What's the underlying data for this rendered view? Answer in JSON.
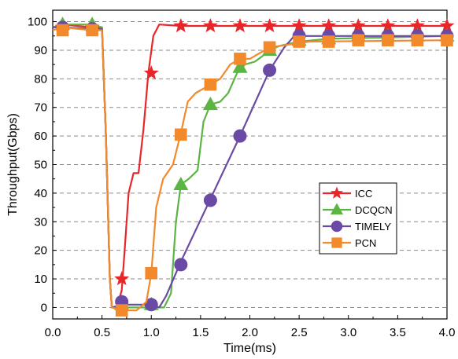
{
  "chart_data": {
    "type": "line",
    "xlabel": "Time(ms)",
    "ylabel": "Throughput(Gbps)",
    "xlim": [
      0.0,
      4.0
    ],
    "ylim": [
      -4,
      104
    ],
    "xticks": [
      0.0,
      0.5,
      1.0,
      1.5,
      2.0,
      2.5,
      3.0,
      3.5,
      4.0
    ],
    "xtick_labels": [
      "0.0",
      "0.5",
      "1.0",
      "1.5",
      "2.0",
      "2.5",
      "3.0",
      "3.5",
      "4.0"
    ],
    "yticks": [
      0,
      10,
      20,
      30,
      40,
      50,
      60,
      70,
      80,
      90,
      100
    ],
    "ytick_labels": [
      "0",
      "10",
      "20",
      "30",
      "40",
      "50",
      "60",
      "70",
      "80",
      "90",
      "100"
    ],
    "grid": "horizontal dashed",
    "legend_position": "right-middle",
    "series": [
      {
        "name": "ICC",
        "color": "#e8262a",
        "marker": "star",
        "line": [
          [
            0,
            98
          ],
          [
            0.1,
            99
          ],
          [
            0.4,
            98
          ],
          [
            0.5,
            98
          ],
          [
            0.54,
            60
          ],
          [
            0.58,
            10
          ],
          [
            0.6,
            0
          ],
          [
            0.65,
            0
          ],
          [
            0.7,
            6
          ],
          [
            0.73,
            20
          ],
          [
            0.77,
            40
          ],
          [
            0.82,
            47
          ],
          [
            0.87,
            47
          ],
          [
            0.92,
            62
          ],
          [
            0.97,
            82
          ],
          [
            1.02,
            95
          ],
          [
            1.08,
            99
          ],
          [
            1.3,
            98.5
          ],
          [
            4.0,
            98.5
          ]
        ],
        "markers": [
          [
            0.1,
            98
          ],
          [
            0.4,
            98
          ],
          [
            0.7,
            10
          ],
          [
            1.0,
            82
          ],
          [
            1.3,
            98.5
          ],
          [
            1.6,
            98.5
          ],
          [
            1.9,
            98.5
          ],
          [
            2.2,
            98.5
          ],
          [
            2.5,
            98.5
          ],
          [
            2.8,
            98.5
          ],
          [
            3.1,
            98.5
          ],
          [
            3.4,
            98.5
          ],
          [
            3.7,
            98.5
          ],
          [
            4.0,
            98.5
          ]
        ]
      },
      {
        "name": "DCQCN",
        "color": "#5ab542",
        "marker": "triangle",
        "line": [
          [
            0,
            98
          ],
          [
            0.1,
            99
          ],
          [
            0.4,
            99
          ],
          [
            0.5,
            98
          ],
          [
            0.54,
            60
          ],
          [
            0.58,
            10
          ],
          [
            0.6,
            0
          ],
          [
            1.0,
            0
          ],
          [
            1.13,
            0
          ],
          [
            1.2,
            5
          ],
          [
            1.25,
            30
          ],
          [
            1.3,
            43
          ],
          [
            1.38,
            45
          ],
          [
            1.47,
            48
          ],
          [
            1.53,
            65
          ],
          [
            1.6,
            71
          ],
          [
            1.7,
            72
          ],
          [
            1.78,
            75
          ],
          [
            1.87,
            82
          ],
          [
            1.95,
            85
          ],
          [
            2.05,
            86
          ],
          [
            2.13,
            88
          ],
          [
            2.2,
            90
          ],
          [
            2.3,
            91.5
          ],
          [
            2.5,
            93
          ],
          [
            2.8,
            94
          ],
          [
            4.0,
            95
          ]
        ],
        "markers": [
          [
            0.1,
            99
          ],
          [
            0.4,
            99
          ],
          [
            0.7,
            1
          ],
          [
            1.0,
            1
          ],
          [
            1.3,
            43
          ],
          [
            1.6,
            71
          ],
          [
            1.9,
            84
          ],
          [
            2.2,
            90
          ],
          [
            2.5,
            93.5
          ],
          [
            2.8,
            94
          ],
          [
            3.1,
            95
          ],
          [
            3.4,
            95
          ],
          [
            3.7,
            95
          ],
          [
            4.0,
            95
          ]
        ]
      },
      {
        "name": "TIMELY",
        "color": "#6a4aa5",
        "marker": "circle",
        "line": [
          [
            0,
            98
          ],
          [
            0.1,
            98
          ],
          [
            0.4,
            97.5
          ],
          [
            0.5,
            97.5
          ],
          [
            0.54,
            60
          ],
          [
            0.58,
            10
          ],
          [
            0.6,
            0
          ],
          [
            0.7,
            1
          ],
          [
            1.0,
            1
          ],
          [
            1.08,
            0
          ],
          [
            1.15,
            4
          ],
          [
            1.3,
            16
          ],
          [
            1.6,
            38
          ],
          [
            1.9,
            60
          ],
          [
            2.2,
            83
          ],
          [
            2.35,
            91
          ],
          [
            2.45,
            95
          ],
          [
            2.6,
            95
          ],
          [
            4.0,
            95
          ]
        ],
        "markers": [
          [
            0.1,
            98
          ],
          [
            0.4,
            97.5
          ],
          [
            0.7,
            2
          ],
          [
            1.0,
            1
          ],
          [
            1.3,
            15
          ],
          [
            1.6,
            37.5
          ],
          [
            1.9,
            60
          ],
          [
            2.2,
            83
          ],
          [
            2.5,
            95
          ],
          [
            2.8,
            95
          ],
          [
            3.1,
            95
          ],
          [
            3.4,
            95
          ],
          [
            3.7,
            95
          ],
          [
            4.0,
            95
          ]
        ]
      },
      {
        "name": "PCN",
        "color": "#f28a2b",
        "marker": "square",
        "line": [
          [
            0,
            97
          ],
          [
            0.1,
            98
          ],
          [
            0.4,
            97
          ],
          [
            0.5,
            97
          ],
          [
            0.54,
            60
          ],
          [
            0.58,
            10
          ],
          [
            0.6,
            0
          ],
          [
            0.7,
            -1
          ],
          [
            0.85,
            -1
          ],
          [
            0.95,
            2
          ],
          [
            1.0,
            12
          ],
          [
            1.05,
            35
          ],
          [
            1.12,
            45
          ],
          [
            1.22,
            50
          ],
          [
            1.3,
            61
          ],
          [
            1.37,
            72
          ],
          [
            1.45,
            75
          ],
          [
            1.55,
            77
          ],
          [
            1.6,
            78
          ],
          [
            1.7,
            80
          ],
          [
            1.8,
            85
          ],
          [
            1.9,
            87
          ],
          [
            2.0,
            87
          ],
          [
            2.1,
            89
          ],
          [
            2.2,
            91
          ],
          [
            2.4,
            92
          ],
          [
            2.6,
            93
          ],
          [
            4.0,
            93.5
          ]
        ],
        "markers": [
          [
            0.1,
            97
          ],
          [
            0.4,
            97
          ],
          [
            0.7,
            -1
          ],
          [
            1.0,
            12
          ],
          [
            1.3,
            60.5
          ],
          [
            1.6,
            78
          ],
          [
            1.9,
            87
          ],
          [
            2.2,
            91
          ],
          [
            2.5,
            93
          ],
          [
            2.8,
            93
          ],
          [
            3.1,
            93.5
          ],
          [
            3.4,
            93.5
          ],
          [
            3.7,
            93.5
          ],
          [
            4.0,
            93.5
          ]
        ]
      }
    ]
  }
}
